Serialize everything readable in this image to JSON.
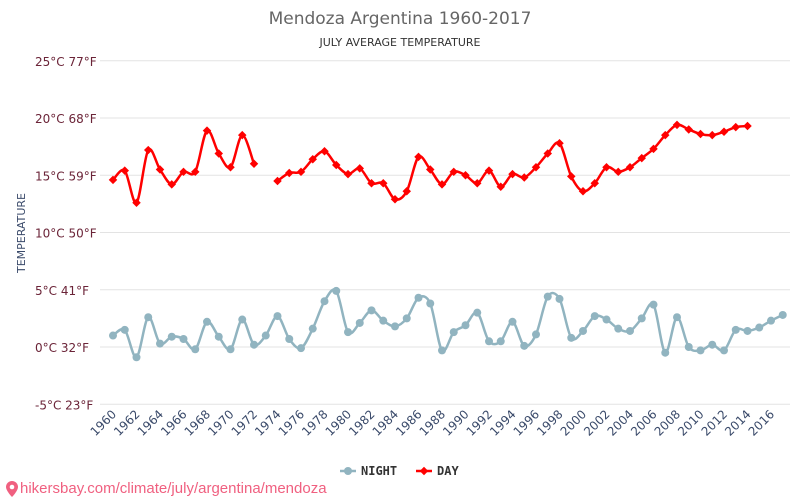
{
  "chart_data": {
    "type": "line",
    "title": "Mendoza Argentina 1960-2017",
    "subtitle": "JULY AVERAGE TEMPERATURE",
    "ylabel": "TEMPERATURE",
    "xlabel": "",
    "ylim": [
      -5,
      25
    ],
    "yticks": [
      {
        "v": 25,
        "label": "25°C 77°F"
      },
      {
        "v": 20,
        "label": "20°C 68°F"
      },
      {
        "v": 15,
        "label": "15°C 59°F"
      },
      {
        "v": 10,
        "label": "10°C 50°F"
      },
      {
        "v": 5,
        "label": "5°C 41°F"
      },
      {
        "v": 0,
        "label": "0°C 32°F"
      },
      {
        "v": -5,
        "label": "-5°C 23°F"
      }
    ],
    "xticks": [
      "1960",
      "1962",
      "1964",
      "1966",
      "1968",
      "1970",
      "1972",
      "1974",
      "1976",
      "1978",
      "1980",
      "1982",
      "1984",
      "1986",
      "1988",
      "1990",
      "1992",
      "1994",
      "1996",
      "1998",
      "2000",
      "2002",
      "2004",
      "2006",
      "2008",
      "2010",
      "2012",
      "2014",
      "2016"
    ],
    "x_start": 1960,
    "grid": true,
    "legend_position": "bottom",
    "series": [
      {
        "name": "NIGHT",
        "color": "#91b4c0",
        "marker": "circle",
        "values": [
          1.0,
          1.5,
          -0.9,
          2.6,
          0.3,
          0.9,
          0.7,
          -0.2,
          2.2,
          0.9,
          -0.2,
          2.4,
          0.2,
          1.0,
          2.7,
          0.7,
          -0.1,
          1.6,
          4.0,
          4.9,
          1.3,
          2.1,
          3.2,
          2.3,
          1.8,
          2.5,
          4.3,
          3.8,
          -0.3,
          1.3,
          1.9,
          3.0,
          0.5,
          0.5,
          2.2,
          0.1,
          1.1,
          4.4,
          4.2,
          0.8,
          1.4,
          2.7,
          2.4,
          1.6,
          1.4,
          2.5,
          3.7,
          -0.5,
          2.6,
          0.0,
          -0.3,
          0.2,
          -0.3,
          1.5,
          1.4,
          1.7,
          2.3,
          2.8
        ]
      },
      {
        "name": "DAY",
        "color": "#ff0000",
        "marker": "diamond",
        "values": [
          14.6,
          15.4,
          12.6,
          17.2,
          15.5,
          14.2,
          15.3,
          15.3,
          18.9,
          16.9,
          15.7,
          18.5,
          16.0,
          null,
          14.5,
          15.2,
          15.3,
          16.4,
          17.1,
          15.9,
          15.1,
          15.6,
          14.3,
          14.3,
          12.9,
          13.6,
          16.6,
          15.5,
          14.2,
          15.3,
          15.0,
          14.3,
          15.4,
          14.0,
          15.1,
          14.8,
          15.7,
          16.9,
          17.8,
          14.9,
          13.6,
          14.3,
          15.7,
          15.3,
          15.7,
          16.5,
          17.3,
          18.5,
          19.4,
          19.0,
          18.6,
          18.5,
          18.8,
          19.2,
          19.3,
          null,
          null,
          null
        ]
      }
    ]
  },
  "footer": {
    "link": "hikersbay.com/climate/july/argentina/mendoza",
    "icon": "location-pin-icon"
  }
}
